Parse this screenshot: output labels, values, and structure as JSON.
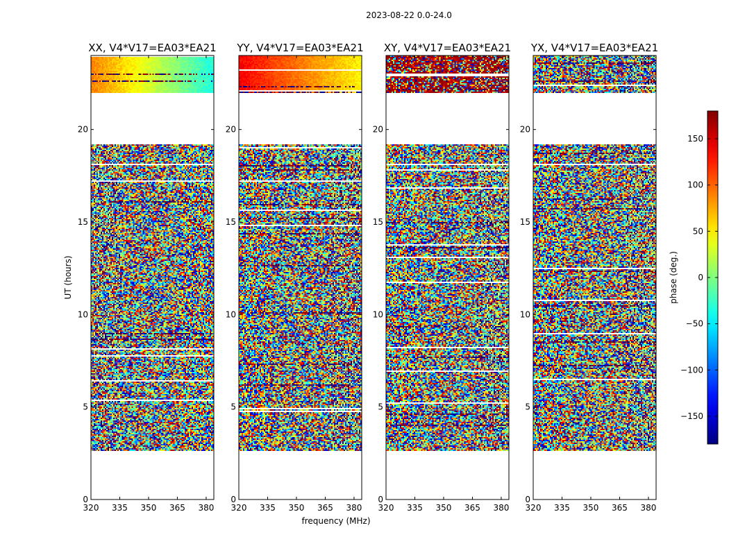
{
  "chart_data": {
    "type": "heatmap",
    "suptitle": "2023-08-22 0.0-24.0",
    "xlabel": "frequency (MHz)",
    "ylabel": "UT (hours)",
    "xlim": [
      320,
      384
    ],
    "ylim": [
      0,
      24
    ],
    "xticks": [
      320,
      335,
      350,
      365,
      380
    ],
    "yticks": [
      0,
      5,
      10,
      15,
      20
    ],
    "panels": [
      {
        "title": "XX, V4*V17=EA03*EA21",
        "pol": "XX"
      },
      {
        "title": "YY, V4*V17=EA03*EA21",
        "pol": "YY"
      },
      {
        "title": "XY, V4*V17=EA03*EA21",
        "pol": "XY"
      },
      {
        "title": "YX, V4*V17=EA03*EA21",
        "pol": "YX"
      }
    ],
    "data_coverage_hours": [
      [
        2.6,
        19.2
      ],
      [
        22.0,
        24.0
      ]
    ],
    "colorbar": {
      "label": "phase (deg.)",
      "range": [
        -180,
        180
      ],
      "ticks": [
        -150,
        -100,
        -50,
        0,
        50,
        100,
        150
      ],
      "tick_labels": [
        "−150",
        "−100",
        "−50",
        "0",
        "50",
        "100",
        "150"
      ],
      "colormap": "jet"
    }
  }
}
